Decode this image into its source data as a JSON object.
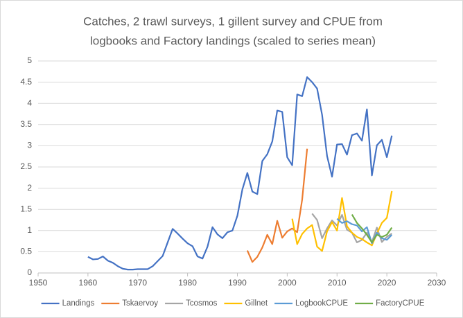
{
  "chart_data": {
    "type": "line",
    "title": [
      "Catches, 2 trawl surveys, 1 gillent survey and CPUE from",
      "logbooks and Factory landings (scaled to series mean)"
    ],
    "xlim": [
      1950,
      2030
    ],
    "xticks": [
      1950,
      1960,
      1970,
      1980,
      1990,
      2000,
      2010,
      2020,
      2030
    ],
    "ylim": [
      0,
      5
    ],
    "yticks": [
      0,
      0.5,
      1,
      1.5,
      2,
      2.5,
      3,
      3.5,
      4,
      4.5,
      5
    ],
    "grid": true,
    "legend": "bottom",
    "series": [
      {
        "name": "Landings",
        "color": "#4472c4",
        "x": [
          1960,
          1961,
          1962,
          1963,
          1964,
          1965,
          1966,
          1967,
          1968,
          1969,
          1970,
          1971,
          1972,
          1973,
          1974,
          1975,
          1976,
          1977,
          1978,
          1979,
          1980,
          1981,
          1982,
          1983,
          1984,
          1985,
          1986,
          1987,
          1988,
          1989,
          1990,
          1991,
          1992,
          1993,
          1994,
          1995,
          1996,
          1997,
          1998,
          1999,
          2000,
          2001,
          2002,
          2003,
          2004,
          2005,
          2006,
          2007,
          2008,
          2009,
          2010,
          2011,
          2012,
          2013,
          2014,
          2015,
          2016,
          2017,
          2018,
          2019,
          2020,
          2021
        ],
        "values": [
          0.38,
          0.32,
          0.33,
          0.39,
          0.29,
          0.24,
          0.16,
          0.1,
          0.08,
          0.08,
          0.09,
          0.09,
          0.09,
          0.16,
          0.28,
          0.4,
          0.72,
          1.04,
          0.93,
          0.81,
          0.7,
          0.63,
          0.39,
          0.34,
          0.62,
          1.08,
          0.91,
          0.82,
          0.96,
          1.0,
          1.35,
          1.97,
          2.36,
          1.92,
          1.86,
          2.64,
          2.8,
          3.1,
          3.83,
          3.8,
          2.73,
          2.54,
          4.21,
          4.17,
          4.62,
          4.5,
          4.35,
          3.73,
          2.76,
          2.27,
          3.03,
          3.04,
          2.79,
          3.25,
          3.29,
          3.12,
          3.86,
          2.3,
          3.01,
          3.14,
          2.73,
          3.24
        ]
      },
      {
        "name": "Tskaervoy",
        "color": "#ed7d31",
        "x": [
          1992,
          1993,
          1994,
          1995,
          1996,
          1997,
          1998,
          1999,
          2000,
          2001,
          2002,
          2003,
          2004
        ],
        "values": [
          0.53,
          0.26,
          0.38,
          0.6,
          0.9,
          0.68,
          1.23,
          0.83,
          0.98,
          1.05,
          0.96,
          1.73,
          2.93
        ]
      },
      {
        "name": "Tcosmos",
        "color": "#a5a5a5",
        "x": [
          2005,
          2006,
          2007,
          2008,
          2009,
          2010,
          2011,
          2012,
          2013,
          2014,
          2015,
          2016,
          2017,
          2018,
          2019,
          2020,
          2021
        ],
        "values": [
          1.4,
          1.25,
          0.82,
          1.05,
          1.24,
          1.12,
          1.37,
          1.02,
          0.95,
          0.72,
          0.78,
          0.95,
          0.73,
          1.07,
          0.73,
          0.85,
          0.93
        ]
      },
      {
        "name": "Gillnet",
        "color": "#ffc000",
        "x": [
          2001,
          2002,
          2003,
          2004,
          2005,
          2006,
          2007,
          2008,
          2009,
          2010,
          2011,
          2012,
          2013,
          2014,
          2015,
          2016,
          2017,
          2018,
          2019,
          2020,
          2021
        ],
        "values": [
          1.28,
          0.68,
          0.92,
          1.05,
          1.13,
          0.62,
          0.52,
          0.98,
          1.2,
          1.0,
          1.77,
          1.1,
          0.95,
          0.85,
          0.8,
          0.72,
          0.65,
          0.93,
          1.18,
          1.3,
          1.93
        ]
      },
      {
        "name": "LogbookCPUE",
        "color": "#5b9bd5",
        "x": [
          2010,
          2011,
          2012,
          2013,
          2014,
          2015,
          2016,
          2017,
          2018,
          2019,
          2020,
          2021
        ],
        "values": [
          1.28,
          1.18,
          1.22,
          1.15,
          1.12,
          0.98,
          1.08,
          0.7,
          0.95,
          0.82,
          0.78,
          0.9
        ]
      },
      {
        "name": "FactoryCPUE",
        "color": "#70ad47",
        "x": [
          2013,
          2014,
          2015,
          2016,
          2017,
          2018,
          2019,
          2020,
          2021
        ],
        "values": [
          1.38,
          1.18,
          1.05,
          0.9,
          0.72,
          0.9,
          0.85,
          0.9,
          1.07
        ]
      }
    ]
  }
}
